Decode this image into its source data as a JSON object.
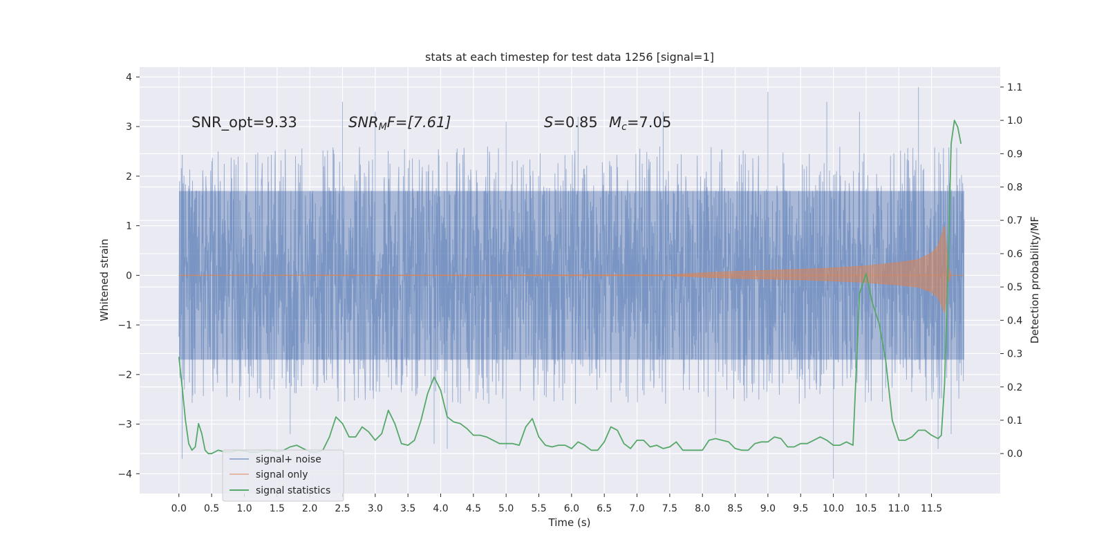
{
  "chart_data": {
    "type": "line",
    "title": "stats at each timestep for test data 1256 [signal=1]",
    "xlabel": "Time (s)",
    "ylabel": "Whitened strain",
    "y2label": "Detection probability/MF",
    "xlim": [
      -0.6,
      12.55
    ],
    "ylim": [
      -4.4,
      4.2
    ],
    "y2lim": [
      -0.12,
      1.16
    ],
    "x_ticks": [
      0.0,
      0.5,
      1.0,
      1.5,
      2.0,
      2.5,
      3.0,
      3.5,
      4.0,
      4.5,
      5.0,
      5.5,
      6.0,
      6.5,
      7.0,
      7.5,
      8.0,
      8.5,
      9.0,
      9.5,
      10.0,
      10.5,
      11.0,
      11.5
    ],
    "x_tick_labels": [
      "0.0",
      "0.5",
      "1.0",
      "1.5",
      "2.0",
      "2.5",
      "3.0",
      "3.5",
      "4.0",
      "4.5",
      "5.0",
      "5.5",
      "6.0",
      "6.5",
      "7.0",
      "7.5",
      "8.0",
      "8.5",
      "9.0",
      "9.5",
      "10.0",
      "10.5",
      "11.0",
      "11.5"
    ],
    "y_ticks": [
      4,
      3,
      2,
      1,
      0,
      -1,
      -2,
      -3,
      -4
    ],
    "y_tick_labels": [
      "4",
      "3",
      "2",
      "1",
      "0",
      "−1",
      "−2",
      "−3",
      "−4"
    ],
    "y2_ticks": [
      1.1,
      1.0,
      0.9,
      0.8,
      0.7,
      0.6,
      0.5,
      0.4,
      0.3,
      0.2,
      0.1,
      0.0
    ],
    "y2_tick_labels": [
      "1.1",
      "1.0",
      "0.9",
      "0.8",
      "0.7",
      "0.6",
      "0.5",
      "0.4",
      "0.3",
      "0.2",
      "0.1",
      "0.0"
    ],
    "grid": true,
    "legend_position": "lower-left",
    "annotations": {
      "snr_opt": "SNR_opt=9.33",
      "snr_mf_main": "SNR",
      "snr_mf_sub": "M",
      "snr_mf_rest": "F=[7.61]",
      "s_var": "S",
      "s_rest": "=0.85",
      "mc_var": "M",
      "mc_sub": "c",
      "mc_rest": "=7.05"
    },
    "series": [
      {
        "name": "signal+ noise",
        "color": "#4c72b0",
        "opacity": 0.5,
        "x_range": [
          0.0,
          12.0
        ],
        "typical_abs_max": 1.7,
        "peak_points": [
          {
            "x": 0.05,
            "y": -3.7
          },
          {
            "x": 0.6,
            "y": 2.5
          },
          {
            "x": 1.7,
            "y": -3.2
          },
          {
            "x": 2.5,
            "y": 3.5
          },
          {
            "x": 3.0,
            "y": 3.3
          },
          {
            "x": 3.9,
            "y": -3.4
          },
          {
            "x": 4.1,
            "y": -3.5
          },
          {
            "x": 4.3,
            "y": -1.0
          },
          {
            "x": 5.0,
            "y": -3.5
          },
          {
            "x": 5.0,
            "y": 3.1
          },
          {
            "x": 6.1,
            "y": 3.2
          },
          {
            "x": 7.4,
            "y": 3.3
          },
          {
            "x": 8.2,
            "y": -3.2
          },
          {
            "x": 9.0,
            "y": 3.7
          },
          {
            "x": 9.9,
            "y": 3.5
          },
          {
            "x": 10.0,
            "y": -4.1
          },
          {
            "x": 10.4,
            "y": 3.3
          },
          {
            "x": 11.3,
            "y": 3.8
          },
          {
            "x": 11.6,
            "y": -3.5
          },
          {
            "x": 11.8,
            "y": -3.2
          }
        ]
      },
      {
        "name": "signal only",
        "color": "#dd8452",
        "opacity": 0.5,
        "envelope": {
          "x": [
            0.0,
            7.5,
            8.0,
            8.5,
            9.0,
            9.5,
            10.0,
            10.5,
            11.0,
            11.3,
            11.5,
            11.6,
            11.7,
            11.75,
            11.8
          ],
          "amplitude": [
            0.0,
            0.01,
            0.05,
            0.08,
            0.1,
            0.12,
            0.15,
            0.19,
            0.26,
            0.32,
            0.45,
            0.6,
            1.0,
            0.2,
            0.0
          ]
        }
      },
      {
        "name": "signal statistics",
        "color": "#55a868",
        "axis": "right",
        "x": [
          0.0,
          0.05,
          0.1,
          0.15,
          0.2,
          0.25,
          0.3,
          0.35,
          0.4,
          0.45,
          0.5,
          0.6,
          0.7,
          0.8,
          0.9,
          1.0,
          1.1,
          1.2,
          1.3,
          1.4,
          1.5,
          1.6,
          1.7,
          1.8,
          1.9,
          2.0,
          2.1,
          2.2,
          2.3,
          2.4,
          2.5,
          2.6,
          2.7,
          2.8,
          2.9,
          3.0,
          3.1,
          3.2,
          3.3,
          3.4,
          3.5,
          3.6,
          3.7,
          3.8,
          3.9,
          4.0,
          4.1,
          4.2,
          4.3,
          4.4,
          4.5,
          4.6,
          4.7,
          4.8,
          4.9,
          5.0,
          5.1,
          5.2,
          5.3,
          5.4,
          5.5,
          5.6,
          5.7,
          5.8,
          5.9,
          6.0,
          6.1,
          6.2,
          6.3,
          6.4,
          6.5,
          6.6,
          6.7,
          6.8,
          6.9,
          7.0,
          7.1,
          7.2,
          7.3,
          7.4,
          7.5,
          7.6,
          7.7,
          7.8,
          7.9,
          8.0,
          8.1,
          8.2,
          8.3,
          8.4,
          8.5,
          8.6,
          8.7,
          8.8,
          8.9,
          9.0,
          9.1,
          9.2,
          9.3,
          9.4,
          9.5,
          9.6,
          9.7,
          9.8,
          9.9,
          10.0,
          10.1,
          10.2,
          10.3,
          10.4,
          10.5,
          10.6,
          10.7,
          10.8,
          10.9,
          11.0,
          11.1,
          11.2,
          11.3,
          11.4,
          11.5,
          11.6,
          11.65,
          11.7,
          11.75,
          11.8,
          11.85,
          11.9,
          11.95
        ],
        "y": [
          0.29,
          0.2,
          0.1,
          0.03,
          0.01,
          0.02,
          0.09,
          0.06,
          0.01,
          0.0,
          0.0,
          0.01,
          0.005,
          0.005,
          0.01,
          0.008,
          0.004,
          0.004,
          0.01,
          0.01,
          0.005,
          0.01,
          0.02,
          0.025,
          0.015,
          0.005,
          0.004,
          0.01,
          0.05,
          0.11,
          0.09,
          0.05,
          0.05,
          0.08,
          0.065,
          0.04,
          0.06,
          0.13,
          0.09,
          0.03,
          0.025,
          0.04,
          0.1,
          0.18,
          0.23,
          0.19,
          0.11,
          0.095,
          0.09,
          0.075,
          0.055,
          0.055,
          0.05,
          0.04,
          0.03,
          0.03,
          0.03,
          0.025,
          0.08,
          0.105,
          0.05,
          0.025,
          0.02,
          0.025,
          0.025,
          0.015,
          0.035,
          0.025,
          0.01,
          0.01,
          0.035,
          0.08,
          0.07,
          0.03,
          0.015,
          0.04,
          0.04,
          0.02,
          0.025,
          0.015,
          0.02,
          0.035,
          0.01,
          0.01,
          0.01,
          0.01,
          0.04,
          0.045,
          0.04,
          0.035,
          0.015,
          0.01,
          0.01,
          0.03,
          0.035,
          0.035,
          0.05,
          0.045,
          0.02,
          0.02,
          0.03,
          0.03,
          0.04,
          0.05,
          0.04,
          0.025,
          0.025,
          0.035,
          0.025,
          0.48,
          0.54,
          0.45,
          0.39,
          0.28,
          0.1,
          0.04,
          0.04,
          0.05,
          0.07,
          0.07,
          0.055,
          0.045,
          0.055,
          0.21,
          0.55,
          0.93,
          1.0,
          0.98,
          0.93
        ]
      }
    ]
  }
}
